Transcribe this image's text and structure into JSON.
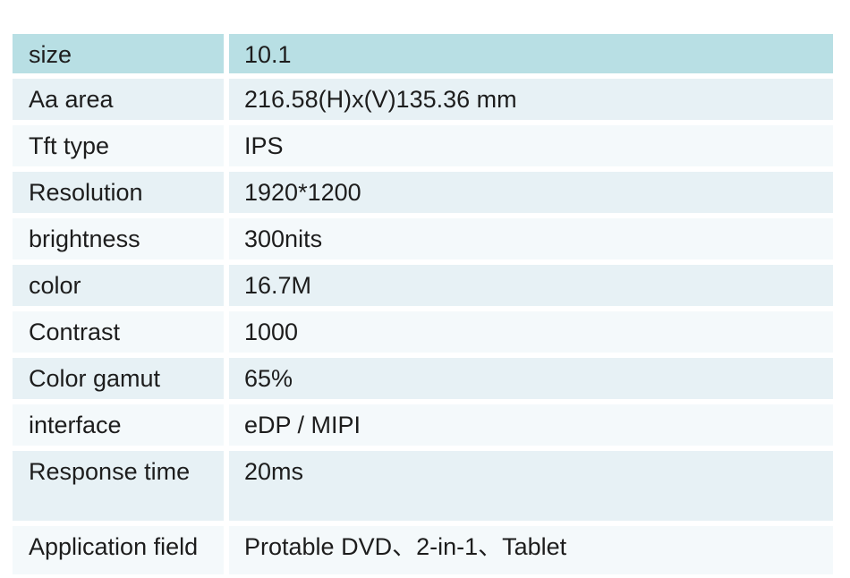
{
  "colors": {
    "header_row_bg": "#b8dfe4",
    "row_tint_strong": "#e7f1f5",
    "row_tint_faint": "#f4f9fb",
    "text": "#1d1d1d",
    "page_background": "#ffffff"
  },
  "table": {
    "rows": [
      {
        "label": "size",
        "value": "10.1"
      },
      {
        "label": "Aa area",
        "value": "216.58(H)x(V)135.36 mm"
      },
      {
        "label": "Tft type",
        "value": "IPS"
      },
      {
        "label": "Resolution",
        "value": "1920*1200"
      },
      {
        "label": "brightness",
        "value": "300nits"
      },
      {
        "label": "color",
        "value": "16.7M"
      },
      {
        "label": "Contrast",
        "value": "1000"
      },
      {
        "label": "Color gamut",
        "value": "65%"
      },
      {
        "label": "interface",
        "value": "eDP / MIPI"
      },
      {
        "label": "Response time",
        "value": "20ms"
      },
      {
        "label": "Application field",
        "value": "Protable DVD、2-in-1、Tablet"
      }
    ]
  }
}
